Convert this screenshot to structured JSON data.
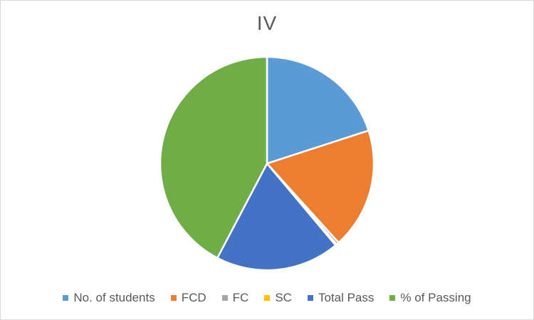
{
  "chart_data": {
    "type": "pie",
    "title": "IV",
    "legend_position": "bottom",
    "categories": [
      "No. of students",
      "FCD",
      "FC",
      "SC",
      "Total Pass",
      "% of Passing"
    ],
    "values": [
      20,
      18.3,
      0.4,
      0.2,
      18.8,
      42.3
    ],
    "colors": [
      "#5B9BD5",
      "#ED7D31",
      "#A5A5A5",
      "#FFC000",
      "#4472C4",
      "#70AD47"
    ],
    "start_angle_deg": 0,
    "direction": "clockwise"
  }
}
